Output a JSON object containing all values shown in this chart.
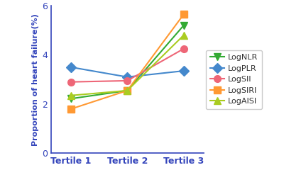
{
  "x_labels": [
    "Tertile 1",
    "Tertile 2",
    "Tertile 3"
  ],
  "series": [
    {
      "name": "LogNLR",
      "values": [
        2.22,
        2.55,
        5.2
      ],
      "color": "#33aa33",
      "marker": "v",
      "markersize": 7
    },
    {
      "name": "LogPLR",
      "values": [
        3.5,
        3.1,
        3.35
      ],
      "color": "#4488cc",
      "marker": "D",
      "markersize": 7
    },
    {
      "name": "LogSII",
      "values": [
        2.9,
        2.95,
        4.25
      ],
      "color": "#ee6677",
      "marker": "o",
      "markersize": 7
    },
    {
      "name": "LogSIRI",
      "values": [
        1.8,
        2.55,
        5.65
      ],
      "color": "#ff9933",
      "marker": "s",
      "markersize": 7
    },
    {
      "name": "LogAISI",
      "values": [
        2.35,
        2.55,
        4.8
      ],
      "color": "#aacc22",
      "marker": "^",
      "markersize": 7
    }
  ],
  "ylabel": "Proportion of heart failure(%)",
  "ylim": [
    0,
    6
  ],
  "yticks": [
    0,
    2,
    4,
    6
  ],
  "axis_color": "#3344bb",
  "figsize": [
    4.0,
    2.64
  ],
  "dpi": 100
}
